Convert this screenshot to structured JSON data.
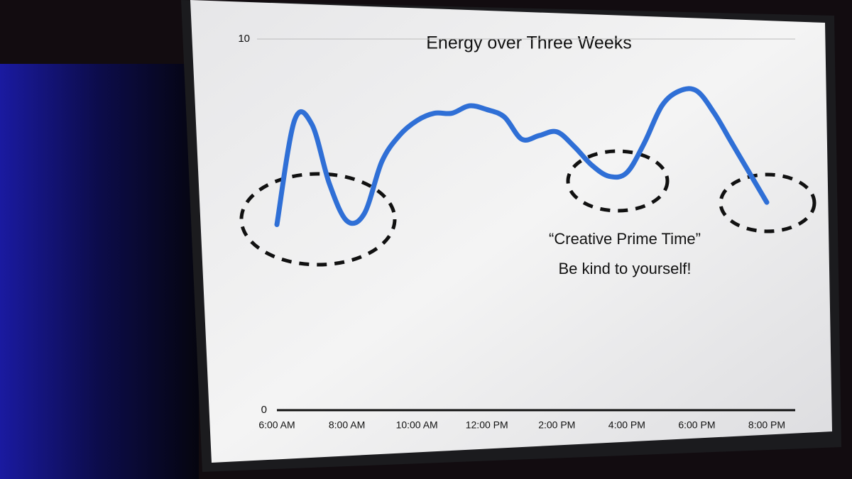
{
  "chart_data": {
    "type": "line",
    "title": "Energy over Three Weeks",
    "categories": [
      "6:00 AM",
      null,
      null,
      null,
      "8:00 AM",
      null,
      null,
      null,
      "10:00 AM",
      null,
      null,
      null,
      "12:00 PM",
      null,
      null,
      null,
      "2:00 PM",
      null,
      null,
      null,
      "4:00 PM",
      null,
      null,
      null,
      "6:00 PM",
      null,
      null,
      null,
      "8:00 PM"
    ],
    "series": [
      {
        "color": "#2f6fd6",
        "values": [
          5.0,
          7.8,
          7.7,
          6.1,
          5.1,
          5.3,
          6.7,
          7.4,
          7.8,
          8.0,
          8.0,
          8.2,
          8.1,
          7.9,
          7.3,
          7.4,
          7.5,
          7.1,
          6.6,
          6.3,
          6.4,
          7.2,
          8.2,
          8.6,
          8.6,
          8.0,
          7.2,
          6.4,
          5.6
        ]
      }
    ],
    "ylim": [
      0,
      10
    ],
    "yticks": [
      0,
      10
    ],
    "annotations": [
      "“Creative Prime Time”",
      "Be kind to yourself!"
    ]
  }
}
